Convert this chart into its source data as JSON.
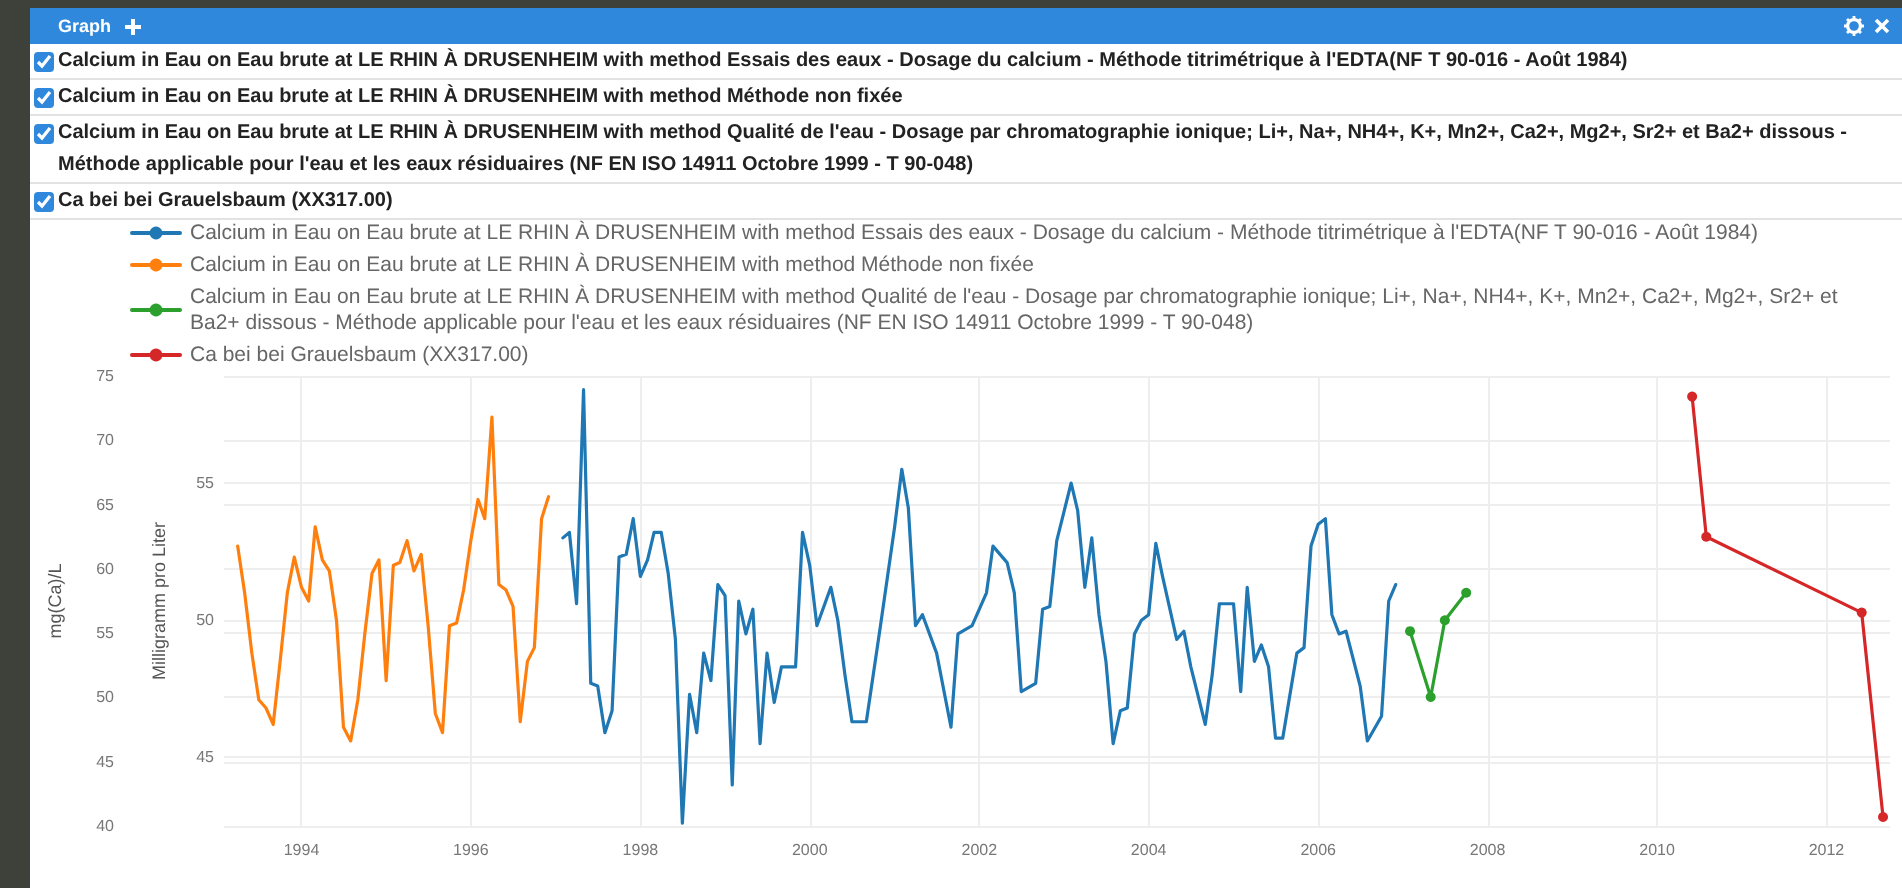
{
  "chart_data": {
    "type": "line",
    "title": "Graph",
    "ylabel": "Milligramm pro Liter",
    "y2label": "mg(Ca)/L",
    "xlim": [
      "1993-02",
      "2012-10"
    ],
    "xticks": [
      "1994",
      "1996",
      "1998",
      "2000",
      "2002",
      "2004",
      "2006",
      "2008",
      "2010",
      "2012"
    ],
    "ylim": [
      42.5,
      58.9
    ],
    "yticks": [
      45,
      50,
      55
    ],
    "y2lim": [
      40,
      75
    ],
    "y2ticks": [
      40,
      45,
      50,
      55,
      60,
      65,
      70,
      75
    ],
    "grid": true,
    "legend": "top",
    "series": [
      {
        "name": "Calcium in Eau on Eau brute at LE RHIN À DRUSENHEIM with method Essais des eaux - Dosage du calcium - Méthode titrimétrique à l'EDTA(NF T 90-016 - Août 1984)",
        "color": "#1f77b4",
        "x": [
          "1997-02",
          "1997-03",
          "1997-04",
          "1997-05",
          "1997-06",
          "1997-07",
          "1997-08",
          "1997-09",
          "1997-10",
          "1997-11",
          "1997-12",
          "1998-01",
          "1998-02",
          "1998-03",
          "1998-04",
          "1998-05",
          "1998-06",
          "1998-07",
          "1998-08",
          "1998-09",
          "1998-10",
          "1998-11",
          "1998-12",
          "1999-01",
          "1999-02",
          "1999-03",
          "1999-04",
          "1999-05",
          "1999-06",
          "1999-07",
          "1999-08",
          "1999-09",
          "1999-11",
          "1999-12",
          "2000-01",
          "2000-02",
          "2000-04",
          "2000-05",
          "2000-06",
          "2000-07",
          "2000-09",
          "2000-11",
          "2001-01",
          "2001-02",
          "2001-03",
          "2001-04",
          "2001-05",
          "2001-07",
          "2001-09",
          "2001-10",
          "2001-12",
          "2002-02",
          "2002-03",
          "2002-05",
          "2002-06",
          "2002-07",
          "2002-09",
          "2002-10",
          "2002-11",
          "2002-12",
          "2003-02",
          "2003-03",
          "2003-04",
          "2003-05",
          "2003-06",
          "2003-07",
          "2003-08",
          "2003-09",
          "2003-10",
          "2003-11",
          "2003-12",
          "2004-01",
          "2004-02",
          "2004-03",
          "2004-05",
          "2004-06",
          "2004-07",
          "2004-09",
          "2004-10",
          "2004-11",
          "2005-01",
          "2005-02",
          "2005-03",
          "2005-04",
          "2005-05",
          "2005-06",
          "2005-07",
          "2005-08",
          "2005-10",
          "2005-11",
          "2005-12",
          "2006-01",
          "2006-02",
          "2006-03",
          "2006-04",
          "2006-05",
          "2006-07",
          "2006-08",
          "2006-10",
          "2006-11",
          "2006-12"
        ],
        "values": [
          53.0,
          53.2,
          50.6,
          58.4,
          47.7,
          47.6,
          45.9,
          46.7,
          52.3,
          52.4,
          53.7,
          51.6,
          52.2,
          53.2,
          53.2,
          51.7,
          49.3,
          42.6,
          47.3,
          45.9,
          48.8,
          47.8,
          51.3,
          50.9,
          44.0,
          50.7,
          49.5,
          50.4,
          45.5,
          48.8,
          47.0,
          48.3,
          48.3,
          53.2,
          52.0,
          49.8,
          51.2,
          50.0,
          48.0,
          46.3,
          46.3,
          49.8,
          53.4,
          55.5,
          54.1,
          49.8,
          50.2,
          48.8,
          46.1,
          49.5,
          49.8,
          51.0,
          52.7,
          52.1,
          51.0,
          47.4,
          47.7,
          50.4,
          50.5,
          52.9,
          55.0,
          54.0,
          51.2,
          53.0,
          50.2,
          48.5,
          45.5,
          46.7,
          46.8,
          49.5,
          50.0,
          50.2,
          52.8,
          51.6,
          49.3,
          49.6,
          48.3,
          46.2,
          48.0,
          50.6,
          50.6,
          47.4,
          51.2,
          48.5,
          49.1,
          48.3,
          45.7,
          45.7,
          48.8,
          49.0,
          52.7,
          53.5,
          53.7,
          50.2,
          49.5,
          49.6,
          47.6,
          45.6,
          46.5,
          50.7,
          51.3
        ]
      },
      {
        "name": "Calcium in Eau on Eau brute at LE RHIN À DRUSENHEIM with method Méthode non fixée",
        "color": "#ff7f0e",
        "x": [
          "1993-04",
          "1993-05",
          "1993-06",
          "1993-07",
          "1993-08",
          "1993-09",
          "1993-10",
          "1993-11",
          "1993-12",
          "1994-01",
          "1994-02",
          "1994-03",
          "1994-04",
          "1994-05",
          "1994-06",
          "1994-07",
          "1994-08",
          "1994-09",
          "1994-10",
          "1994-11",
          "1994-12",
          "1995-01",
          "1995-02",
          "1995-03",
          "1995-04",
          "1995-05",
          "1995-06",
          "1995-07",
          "1995-08",
          "1995-09",
          "1995-10",
          "1995-11",
          "1995-12",
          "1996-01",
          "1996-02",
          "1996-03",
          "1996-04",
          "1996-05",
          "1996-06",
          "1996-07",
          "1996-08",
          "1996-09",
          "1996-10",
          "1996-11",
          "1996-12"
        ],
        "values": [
          52.7,
          51.0,
          48.8,
          47.1,
          46.8,
          46.2,
          48.5,
          51.0,
          52.3,
          51.2,
          50.7,
          53.4,
          52.2,
          51.8,
          50.0,
          46.1,
          45.6,
          47.1,
          49.5,
          51.7,
          52.2,
          47.8,
          52.0,
          52.1,
          52.9,
          51.8,
          52.4,
          49.8,
          46.6,
          45.9,
          49.8,
          49.9,
          51.1,
          52.9,
          54.4,
          53.7,
          57.4,
          51.3,
          51.1,
          50.5,
          46.3,
          48.5,
          49.0,
          53.7,
          54.5
        ]
      },
      {
        "name": "Calcium in Eau on Eau brute at LE RHIN À DRUSENHEIM with method Qualité de l'eau - Dosage par chromatographie ionique; Li+, Na+, NH4+, K+, Mn2+, Ca2+, Mg2+, Sr2+ et Ba2+ dissous - Méthode applicable pour l'eau et les eaux résiduaires (NF EN ISO 14911 Octobre 1999 - T 90-048)",
        "color": "#2ca02c",
        "marker": "circle",
        "x": [
          "2007-02",
          "2007-05",
          "2007-07",
          "2007-10"
        ],
        "values": [
          49.6,
          47.2,
          50.0,
          51.0
        ]
      },
      {
        "name": "Ca bei bei Grauelsbaum (XX317.00)",
        "color": "#d62728",
        "marker": "circle",
        "axis": "y2",
        "x": [
          "2010-06",
          "2010-08",
          "2012-06",
          "2012-09"
        ],
        "values": [
          73.4,
          62.5,
          56.6,
          40.7
        ]
      }
    ]
  }
}
